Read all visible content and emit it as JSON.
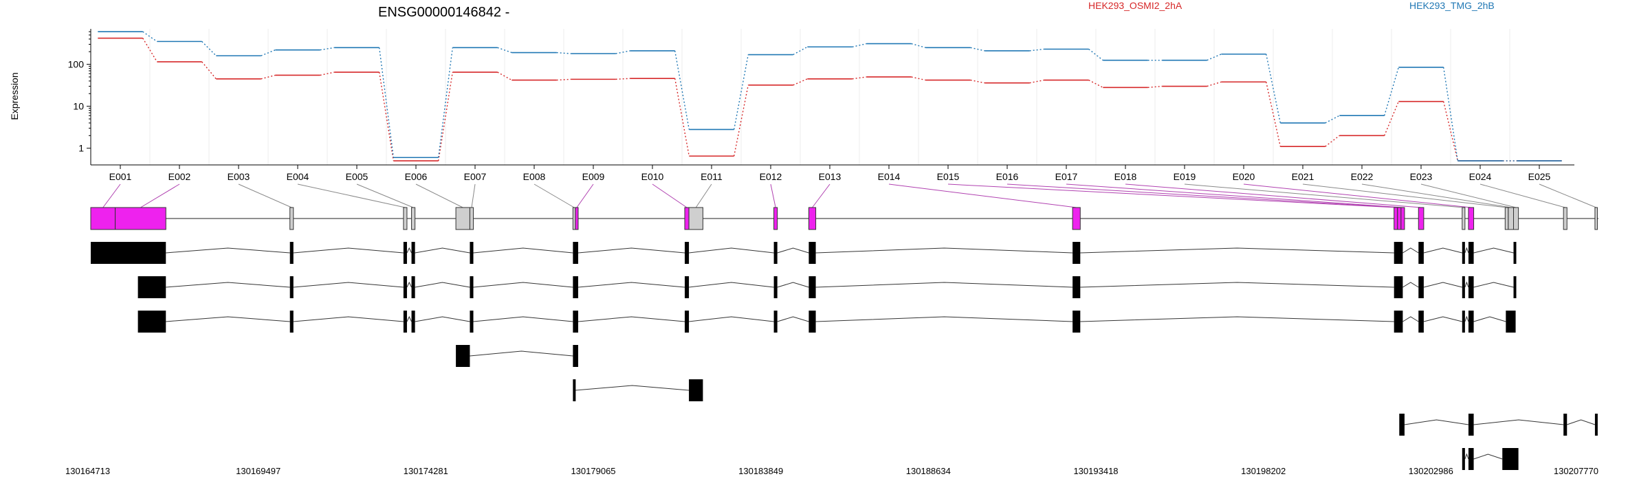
{
  "title": "ENSG00000146842 -",
  "ylabel": "Expression",
  "colors": {
    "sample1": "#d62728",
    "sample2": "#1f77b4",
    "highlight": "#ee22ee",
    "grey": "#cfcfcf"
  },
  "chart_data": {
    "type": "line",
    "yscale": "log",
    "ylim": [
      0.4,
      700
    ],
    "yticks": [
      "1",
      "10",
      "100"
    ],
    "categories": [
      "E001",
      "E002",
      "E003",
      "E004",
      "E005",
      "E006",
      "E007",
      "E008",
      "E009",
      "E010",
      "E011",
      "E012",
      "E013",
      "E014",
      "E015",
      "E016",
      "E017",
      "E018",
      "E019",
      "E020",
      "E021",
      "E022",
      "E023",
      "E024",
      "E025"
    ],
    "series": [
      {
        "name": "HEK293_OSMI2_2hA",
        "color": "#d62728",
        "values": [
          420,
          115,
          45,
          55,
          65,
          0.5,
          65,
          42,
          44,
          46,
          0.65,
          32,
          45,
          50,
          42,
          36,
          42,
          28,
          30,
          38,
          1.1,
          2.0,
          13,
          0.5,
          0.5
        ]
      },
      {
        "name": "HEK293_TMG_2hB",
        "color": "#1f77b4",
        "values": [
          600,
          350,
          160,
          220,
          250,
          0.6,
          250,
          190,
          180,
          210,
          2.8,
          170,
          260,
          310,
          250,
          210,
          230,
          125,
          125,
          175,
          4.0,
          6.0,
          85,
          0.5,
          0.5
        ]
      }
    ],
    "genomic_ticks": [
      "130164713",
      "130169497",
      "130174281",
      "130179065",
      "130183849",
      "130188634",
      "130193418",
      "130198202",
      "130202986",
      "130207770"
    ],
    "gene_model": {
      "exons": [
        {
          "id": "E001",
          "start": 0.0,
          "end": 0.7,
          "hl": true
        },
        {
          "id": "E002",
          "start": 0.7,
          "end": 2.15,
          "hl": true
        },
        {
          "id": "E003",
          "start": 5.7,
          "end": 5.8,
          "hl": false
        },
        {
          "id": "E004",
          "start": 8.95,
          "end": 9.05,
          "hl": false
        },
        {
          "id": "E005",
          "start": 9.18,
          "end": 9.28,
          "hl": false
        },
        {
          "id": "E006",
          "start": 10.45,
          "end": 10.85,
          "hl": false
        },
        {
          "id": "E007",
          "start": 10.85,
          "end": 10.95,
          "hl": false
        },
        {
          "id": "E008",
          "start": 13.8,
          "end": 13.87,
          "hl": false
        },
        {
          "id": "E009",
          "start": 13.87,
          "end": 13.95,
          "hl": true
        },
        {
          "id": "E010",
          "start": 17.0,
          "end": 17.12,
          "hl": true
        },
        {
          "id": "E011",
          "start": 17.12,
          "end": 17.52,
          "hl": false
        },
        {
          "id": "E012",
          "start": 19.55,
          "end": 19.65,
          "hl": true
        },
        {
          "id": "E013",
          "start": 20.55,
          "end": 20.75,
          "hl": true
        },
        {
          "id": "E014",
          "start": 28.1,
          "end": 28.32,
          "hl": true
        },
        {
          "id": "E015",
          "start": 37.3,
          "end": 37.4,
          "hl": true
        },
        {
          "id": "E016",
          "start": 37.4,
          "end": 37.5,
          "hl": true
        },
        {
          "id": "E017",
          "start": 37.5,
          "end": 37.6,
          "hl": true
        },
        {
          "id": "E018",
          "start": 38.0,
          "end": 38.15,
          "hl": true
        },
        {
          "id": "E019",
          "start": 39.25,
          "end": 39.33,
          "hl": false
        },
        {
          "id": "E020",
          "start": 39.43,
          "end": 39.58,
          "hl": true
        },
        {
          "id": "E021",
          "start": 40.48,
          "end": 40.57,
          "hl": false
        },
        {
          "id": "E022",
          "start": 40.57,
          "end": 40.72,
          "hl": false
        },
        {
          "id": "E023",
          "start": 40.72,
          "end": 40.86,
          "hl": false
        },
        {
          "id": "E024",
          "start": 42.15,
          "end": 42.25,
          "hl": false
        },
        {
          "id": "E025",
          "start": 43.05,
          "end": 43.12,
          "hl": false
        }
      ],
      "transcripts": [
        {
          "blocks": [
            [
              0,
              2.15
            ],
            [
              5.7,
              5.8
            ],
            [
              8.95,
              9.05
            ],
            [
              9.18,
              9.28
            ],
            [
              10.85,
              10.95
            ],
            [
              13.8,
              13.95
            ],
            [
              17.0,
              17.12
            ],
            [
              19.55,
              19.65
            ],
            [
              20.55,
              20.75
            ],
            [
              28.1,
              28.32
            ],
            [
              37.3,
              37.55
            ],
            [
              38.0,
              38.15
            ],
            [
              39.25,
              39.33
            ],
            [
              39.43,
              39.58
            ],
            [
              40.72,
              40.78
            ]
          ]
        },
        {
          "blocks": [
            [
              1.35,
              2.15
            ],
            [
              5.7,
              5.8
            ],
            [
              8.95,
              9.05
            ],
            [
              9.18,
              9.28
            ],
            [
              10.85,
              10.95
            ],
            [
              13.8,
              13.95
            ],
            [
              17.0,
              17.12
            ],
            [
              19.55,
              19.65
            ],
            [
              20.55,
              20.75
            ],
            [
              28.1,
              28.32
            ],
            [
              37.3,
              37.55
            ],
            [
              38.0,
              38.15
            ],
            [
              39.25,
              39.33
            ],
            [
              39.43,
              39.58
            ],
            [
              40.72,
              40.78
            ]
          ]
        },
        {
          "blocks": [
            [
              1.35,
              2.15
            ],
            [
              5.7,
              5.8
            ],
            [
              8.95,
              9.05
            ],
            [
              9.18,
              9.28
            ],
            [
              10.85,
              10.95
            ],
            [
              13.8,
              13.95
            ],
            [
              17.0,
              17.12
            ],
            [
              19.55,
              19.65
            ],
            [
              20.55,
              20.75
            ],
            [
              28.1,
              28.32
            ],
            [
              37.3,
              37.55
            ],
            [
              38.0,
              38.15
            ],
            [
              39.25,
              39.33
            ],
            [
              39.43,
              39.58
            ],
            [
              40.5,
              40.78
            ]
          ]
        },
        {
          "blocks": [
            [
              10.45,
              10.85
            ],
            [
              13.8,
              13.95
            ]
          ]
        },
        {
          "blocks": [
            [
              13.8,
              13.87
            ],
            [
              17.12,
              17.52
            ]
          ]
        },
        {
          "blocks": [
            [
              37.45,
              37.6
            ],
            [
              39.43,
              39.58
            ],
            [
              42.15,
              42.25
            ],
            [
              43.05,
              43.12
            ]
          ]
        },
        {
          "blocks": [
            [
              39.25,
              39.33
            ],
            [
              39.43,
              39.58
            ],
            [
              40.4,
              40.86
            ]
          ]
        }
      ],
      "span": 43.15
    }
  }
}
